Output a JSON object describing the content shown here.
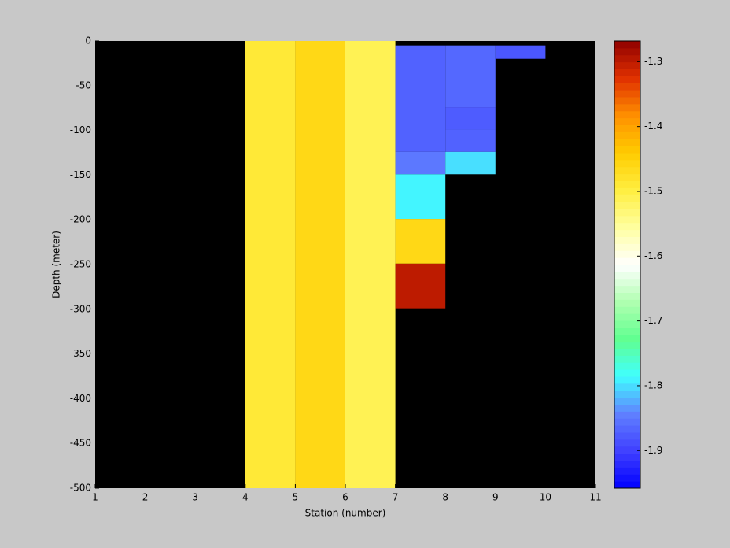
{
  "chart_data": {
    "type": "heatmap",
    "xlabel": "Station (number)",
    "ylabel": "Depth (meter)",
    "xlim": [
      1,
      11
    ],
    "xticks": [
      1,
      2,
      3,
      4,
      5,
      6,
      7,
      8,
      9,
      10,
      11
    ],
    "ylim": [
      -500,
      0
    ],
    "yticks": [
      0,
      -50,
      -100,
      -150,
      -200,
      -250,
      -300,
      -350,
      -400,
      -450,
      -500
    ],
    "background": "#000000",
    "clim": [
      -1.958,
      -1.268
    ],
    "cticks": [
      -1.9,
      -1.8,
      -1.7,
      -1.6,
      -1.5,
      -1.4,
      -1.3
    ],
    "colormap": [
      "#0000ff",
      "#4040ff",
      "#6080ff",
      "#40ffff",
      "#60ff90",
      "#b0ffb0",
      "#ffffff",
      "#ffffa0",
      "#ffee40",
      "#ffcc00",
      "#ff9000",
      "#e03000",
      "#900000"
    ],
    "cells": [
      {
        "x": [
          4,
          5
        ],
        "y": [
          0,
          -500
        ],
        "value": -1.49
      },
      {
        "x": [
          5,
          6
        ],
        "y": [
          0,
          -500
        ],
        "value": -1.46
      },
      {
        "x": [
          6,
          7
        ],
        "y": [
          0,
          -500
        ],
        "value": -1.51
      },
      {
        "x": [
          7,
          8
        ],
        "y": [
          -5,
          -124
        ],
        "value": -1.87
      },
      {
        "x": [
          7,
          8
        ],
        "y": [
          -124,
          -149
        ],
        "value": -1.85
      },
      {
        "x": [
          7,
          8
        ],
        "y": [
          -149,
          -199
        ],
        "value": -1.79
      },
      {
        "x": [
          7,
          8
        ],
        "y": [
          -199,
          -249
        ],
        "value": -1.46
      },
      {
        "x": [
          7,
          8
        ],
        "y": [
          -249,
          -299
        ],
        "value": -1.3
      },
      {
        "x": [
          8,
          9
        ],
        "y": [
          -5,
          -74
        ],
        "value": -1.865
      },
      {
        "x": [
          8,
          9
        ],
        "y": [
          -74,
          -99
        ],
        "value": -1.875
      },
      {
        "x": [
          8,
          9
        ],
        "y": [
          -99,
          -124
        ],
        "value": -1.87
      },
      {
        "x": [
          8,
          9
        ],
        "y": [
          -124,
          -149
        ],
        "value": -1.8
      },
      {
        "x": [
          9,
          10
        ],
        "y": [
          -5,
          -20
        ],
        "value": -1.88
      }
    ]
  }
}
